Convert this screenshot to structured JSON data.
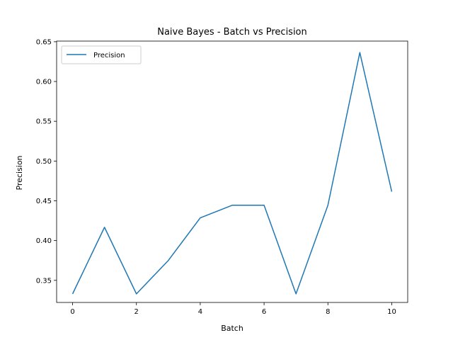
{
  "chart_data": {
    "type": "line",
    "title": "Naive Bayes - Batch vs Precision",
    "xlabel": "Batch",
    "ylabel": "Precision",
    "xlim": [
      -0.5,
      10.5
    ],
    "ylim": [
      0.3222,
      0.6508
    ],
    "xticks": [
      0,
      2,
      4,
      6,
      8,
      10
    ],
    "yticks": [
      0.35,
      0.4,
      0.45,
      0.5,
      0.55,
      0.6,
      0.65
    ],
    "grid": false,
    "legend_position": "top-left",
    "series": [
      {
        "name": "Precision",
        "color": "#1f77b4",
        "x": [
          0,
          1,
          2,
          3,
          4,
          5,
          6,
          7,
          8,
          9,
          10
        ],
        "y": [
          0.333,
          0.4167,
          0.333,
          0.375,
          0.4286,
          0.4444,
          0.4444,
          0.333,
          0.4444,
          0.6364,
          0.4615
        ]
      }
    ]
  }
}
